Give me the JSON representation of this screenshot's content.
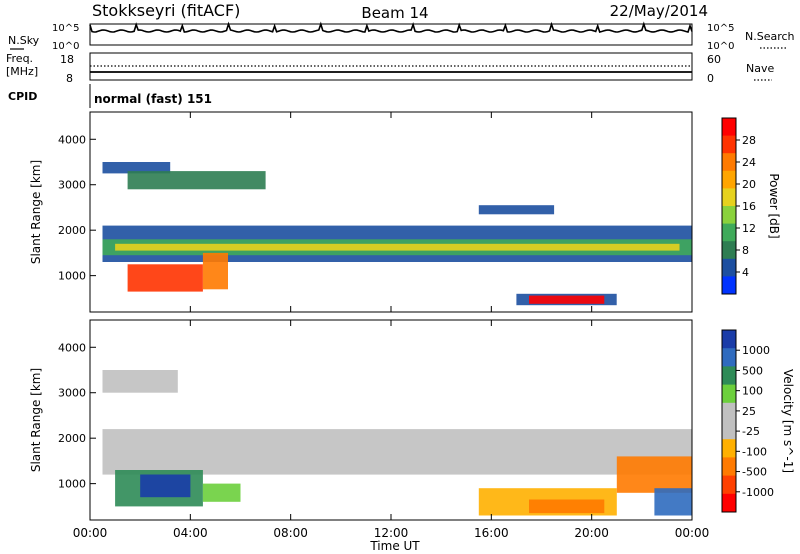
{
  "header": {
    "title": "Stokkseyri (fitACF)",
    "beam": "Beam 14",
    "date": "22/May/2014"
  },
  "top_panels": {
    "noise": {
      "left_label": "N.Sky",
      "right_label": "N.Search",
      "left_ticks": [
        "10^5",
        "10^0"
      ],
      "right_ticks": [
        "10^5",
        "10^0"
      ]
    },
    "freq": {
      "left_label_line1": "Freq.",
      "left_label_line2": "[MHz]",
      "right_label": "Nave",
      "left_ticks": [
        "18",
        "8"
      ],
      "right_ticks": [
        "60",
        "0"
      ]
    },
    "cpid": {
      "label": "CPID",
      "value": "normal (fast) 151"
    }
  },
  "colorbars": {
    "power": {
      "title": "Power [dB]",
      "ticks": [
        "28",
        "24",
        "20",
        "16",
        "12",
        "8",
        "4"
      ],
      "colors": [
        "#ff0000",
        "#ff3300",
        "#ff7a00",
        "#ffa500",
        "#e6d21e",
        "#8ad23c",
        "#3faa5a",
        "#2e7d52",
        "#1c4fa0",
        "#0033ff"
      ]
    },
    "velocity": {
      "title": "Velocity [m s^-1]",
      "ticks": [
        "1000",
        "500",
        "100",
        "25",
        "-25",
        "-100",
        "-500",
        "-1000"
      ],
      "colors": [
        "#1a3ca8",
        "#2f6bbf",
        "#2e8b57",
        "#6ccf3c",
        "#c0c0c0",
        "#c0c0c0",
        "#ffb000",
        "#ff7a00",
        "#ff4000",
        "#ff0000"
      ]
    }
  },
  "chart_data": [
    {
      "type": "heatmap",
      "name": "Power",
      "ylabel": "Slant Range [km]",
      "yticks": [
        "1000",
        "2000",
        "3000",
        "4000"
      ],
      "ylim": [
        200,
        4600
      ],
      "xlim_hours": [
        0,
        24
      ],
      "bands": [
        {
          "start_h": 0.5,
          "end_h": 3.2,
          "low_km": 3250,
          "high_km": 3500,
          "color": "#1c4fa0"
        },
        {
          "start_h": 1.5,
          "end_h": 7.0,
          "low_km": 2900,
          "high_km": 3300,
          "color": "#2e7d52"
        },
        {
          "start_h": 0.5,
          "end_h": 24.0,
          "low_km": 1300,
          "high_km": 2100,
          "color": "#1c4fa0"
        },
        {
          "start_h": 0.5,
          "end_h": 24.0,
          "low_km": 1450,
          "high_km": 1800,
          "color": "#3faa5a"
        },
        {
          "start_h": 1.0,
          "end_h": 23.5,
          "low_km": 1550,
          "high_km": 1700,
          "color": "#e6d21e"
        },
        {
          "start_h": 1.5,
          "end_h": 4.5,
          "low_km": 650,
          "high_km": 1250,
          "color": "#ff3300"
        },
        {
          "start_h": 4.5,
          "end_h": 5.5,
          "low_km": 700,
          "high_km": 1500,
          "color": "#ff7a00"
        },
        {
          "start_h": 17.0,
          "end_h": 21.0,
          "low_km": 350,
          "high_km": 600,
          "color": "#1c4fa0"
        },
        {
          "start_h": 17.5,
          "end_h": 20.5,
          "low_km": 380,
          "high_km": 560,
          "color": "#ff0000"
        },
        {
          "start_h": 15.5,
          "end_h": 18.5,
          "low_km": 2350,
          "high_km": 2550,
          "color": "#1c4fa0"
        }
      ]
    },
    {
      "type": "heatmap",
      "name": "Velocity",
      "ylabel": "Slant Range [km]",
      "yticks": [
        "1000",
        "2000",
        "3000",
        "4000"
      ],
      "ylim": [
        200,
        4600
      ],
      "xlim_hours": [
        0,
        24
      ],
      "bands": [
        {
          "start_h": 0.5,
          "end_h": 3.5,
          "low_km": 3000,
          "high_km": 3500,
          "color": "#c0c0c0"
        },
        {
          "start_h": 0.5,
          "end_h": 24.0,
          "low_km": 1200,
          "high_km": 2200,
          "color": "#c0c0c0"
        },
        {
          "start_h": 1.0,
          "end_h": 4.5,
          "low_km": 500,
          "high_km": 1300,
          "color": "#2e8b57"
        },
        {
          "start_h": 2.0,
          "end_h": 4.0,
          "low_km": 700,
          "high_km": 1200,
          "color": "#1a3ca8"
        },
        {
          "start_h": 4.5,
          "end_h": 6.0,
          "low_km": 600,
          "high_km": 1000,
          "color": "#6ccf3c"
        },
        {
          "start_h": 15.5,
          "end_h": 21.0,
          "low_km": 300,
          "high_km": 900,
          "color": "#ffb000"
        },
        {
          "start_h": 17.5,
          "end_h": 20.5,
          "low_km": 350,
          "high_km": 650,
          "color": "#ff7a00"
        },
        {
          "start_h": 21.0,
          "end_h": 24.0,
          "low_km": 800,
          "high_km": 1600,
          "color": "#ff7a00"
        },
        {
          "start_h": 22.5,
          "end_h": 24.0,
          "low_km": 300,
          "high_km": 900,
          "color": "#2f6bbf"
        }
      ]
    }
  ],
  "x_axis": {
    "ticks": [
      "00:00",
      "04:00",
      "08:00",
      "12:00",
      "16:00",
      "20:00",
      "00:00"
    ],
    "tick_hours": [
      0,
      4,
      8,
      12,
      16,
      20,
      24
    ],
    "label": "Time UT"
  }
}
